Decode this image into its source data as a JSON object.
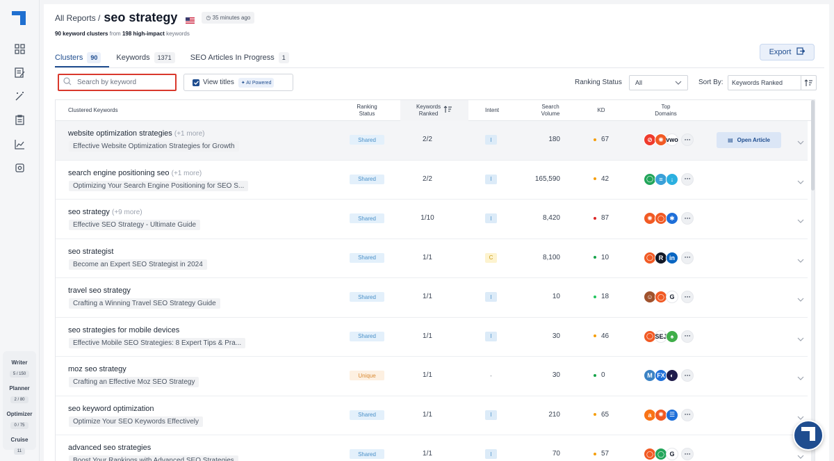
{
  "sidebar": {
    "icons": [
      "dashboard-icon",
      "edit-document-icon",
      "magic-wand-icon",
      "clipboard-icon",
      "trend-chart-icon",
      "settings-icon"
    ],
    "usage": [
      {
        "label": "Writer",
        "count": "5 / 150"
      },
      {
        "label": "Planner",
        "count": "2 / 80"
      },
      {
        "label": "Optimizer",
        "count": "0 / 75"
      },
      {
        "label": "Cruise",
        "count": "11"
      }
    ]
  },
  "header": {
    "breadcrumb": "All Reports /",
    "title": "seo strategy",
    "time": "35 minutes ago",
    "subtitle": {
      "clusters": "90 keyword clusters",
      "from": "from",
      "count": "198 high-impact",
      "suffix": "keywords"
    }
  },
  "tabs": [
    {
      "label": "Clusters",
      "count": "90",
      "active": true
    },
    {
      "label": "Keywords",
      "count": "1371",
      "active": false
    },
    {
      "label": "SEO Articles In Progress",
      "count": "1",
      "active": false
    }
  ],
  "toolbar": {
    "export_label": "Export",
    "search_placeholder": "Search by keyword",
    "view_titles_label": "View titles",
    "ai_badge": "AI Powered",
    "ranking_status_label": "Ranking Status",
    "ranking_status_value": "All",
    "sort_label": "Sort By:",
    "sort_value": "Keywords Ranked"
  },
  "table": {
    "headers": {
      "keywords": "Clustered Keywords",
      "status_1": "Ranking",
      "status_2": "Status",
      "ranked_1": "Keywords",
      "ranked_2": "Ranked",
      "intent": "Intent",
      "volume_1": "Search",
      "volume_2": "Volume",
      "kd": "KD",
      "domains_1": "Top",
      "domains_2": "Domains"
    },
    "open_article_label": "Open Article",
    "rows": [
      {
        "keyword": "website optimization strategies",
        "more": "(+1 more)",
        "article": "Effective Website Optimization Strategies for Growth",
        "status": "Shared",
        "ranked": "2/2",
        "intent": "I",
        "volume": "180",
        "kd": "67",
        "kd_color": "#f59e0b",
        "domains": [
          [
            "#ef3b2d",
            "⊘"
          ],
          [
            "#f15a24",
            "✺"
          ],
          [
            "#ffffff",
            "vwo"
          ]
        ]
      },
      {
        "keyword": "search engine positioning seo",
        "more": "(+1 more)",
        "article": "Optimizing Your Search Engine Positioning for SEO S...",
        "status": "Shared",
        "ranked": "2/2",
        "intent": "I",
        "volume": "165,590",
        "kd": "42",
        "kd_color": "#f59e0b",
        "domains": [
          [
            "#22a55a",
            "◯"
          ],
          [
            "#3aa0d8",
            "≡"
          ],
          [
            "#2bb0e0",
            "↓"
          ]
        ]
      },
      {
        "keyword": "seo strategy",
        "more": "(+9 more)",
        "article": "Effective SEO Strategy - Ultimate Guide",
        "status": "Shared",
        "ranked": "1/10",
        "intent": "I",
        "volume": "8,420",
        "kd": "87",
        "kd_color": "#dc2626",
        "domains": [
          [
            "#f15a24",
            "✺"
          ],
          [
            "#f15a24",
            "◯"
          ],
          [
            "#1e6fd9",
            "✱"
          ]
        ]
      },
      {
        "keyword": "seo strategist",
        "more": "",
        "article": "Become an Expert SEO Strategist in 2024",
        "status": "Shared",
        "ranked": "1/1",
        "intent": "C",
        "volume": "8,100",
        "kd": "10",
        "kd_color": "#16a34a",
        "domains": [
          [
            "#f15a24",
            "◯"
          ],
          [
            "#111827",
            "R"
          ],
          [
            "#0a66c2",
            "in"
          ]
        ]
      },
      {
        "keyword": "travel seo strategy",
        "more": "",
        "article": "Crafting a Winning Travel SEO Strategy Guide",
        "status": "Shared",
        "ranked": "1/1",
        "intent": "I",
        "volume": "10",
        "kd": "18",
        "kd_color": "#22c55e",
        "domains": [
          [
            "#a0522d",
            "☺"
          ],
          [
            "#f15a24",
            "◯"
          ],
          [
            "#ffffff",
            "G"
          ]
        ]
      },
      {
        "keyword": "seo strategies for mobile devices",
        "more": "",
        "article": "Effective Mobile SEO Strategies: 8 Expert Tips & Pra...",
        "status": "Shared",
        "ranked": "1/1",
        "intent": "I",
        "volume": "30",
        "kd": "46",
        "kd_color": "#f59e0b",
        "domains": [
          [
            "#f15a24",
            "◯"
          ],
          [
            "#ffffff",
            "SEJ"
          ],
          [
            "#3fae49",
            "♠"
          ]
        ]
      },
      {
        "keyword": "moz seo strategy",
        "more": "",
        "article": "Crafting an Effective Moz SEO Strategy",
        "status": "Unique",
        "ranked": "1/1",
        "intent": "-",
        "volume": "30",
        "kd": "0",
        "kd_color": "#16a34a",
        "domains": [
          [
            "#3b82c4",
            "M"
          ],
          [
            "#1e6fd9",
            "FX"
          ],
          [
            "#1e1b4b",
            "◐"
          ]
        ]
      },
      {
        "keyword": "seo keyword optimization",
        "more": "",
        "article": "Optimize Your SEO Keywords Effectively",
        "status": "Shared",
        "ranked": "1/1",
        "intent": "I",
        "volume": "210",
        "kd": "65",
        "kd_color": "#f59e0b",
        "domains": [
          [
            "#f97316",
            "a"
          ],
          [
            "#f15a24",
            "✺"
          ],
          [
            "#1e6fd9",
            "☰"
          ]
        ]
      },
      {
        "keyword": "advanced seo strategies",
        "more": "",
        "article": "Boost Your Rankings with Advanced SEO Strategies",
        "status": "Shared",
        "ranked": "1/1",
        "intent": "I",
        "volume": "70",
        "kd": "57",
        "kd_color": "#f59e0b",
        "domains": [
          [
            "#f15a24",
            "◯"
          ],
          [
            "#22a55a",
            "◯"
          ],
          [
            "#ffffff",
            "G"
          ]
        ]
      }
    ]
  }
}
